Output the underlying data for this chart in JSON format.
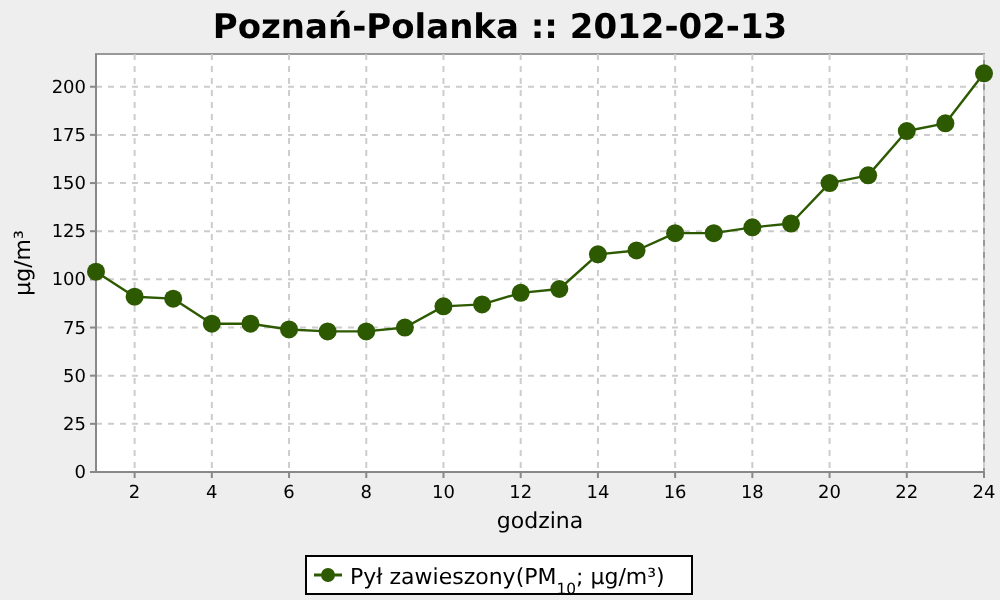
{
  "chart_data": {
    "type": "line",
    "title": "Poznań-Polanka :: 2012-02-13",
    "xlabel": "godzina",
    "ylabel": "µg/m³",
    "x": [
      1,
      2,
      3,
      4,
      5,
      6,
      7,
      8,
      9,
      10,
      11,
      12,
      13,
      14,
      15,
      16,
      17,
      18,
      19,
      20,
      21,
      22,
      23,
      24
    ],
    "series": [
      {
        "name": "Pył zawieszony(PM$_{10}$; µg/m³)",
        "color": "#2d5a00",
        "values": [
          104,
          91,
          90,
          77,
          77,
          74,
          73,
          73,
          75,
          86,
          87,
          93,
          95,
          113,
          115,
          124,
          124,
          127,
          129,
          150,
          154,
          177,
          181,
          207
        ]
      }
    ],
    "xlim": [
      1,
      24
    ],
    "xticks": [
      2,
      4,
      6,
      8,
      10,
      12,
      14,
      16,
      18,
      20,
      22,
      24
    ],
    "ylim": [
      0,
      217
    ],
    "yticks": [
      0,
      25,
      50,
      75,
      100,
      125,
      150,
      175,
      200
    ],
    "grid": true,
    "legend": "bottom",
    "marker": "circle",
    "line_style": "solid"
  }
}
